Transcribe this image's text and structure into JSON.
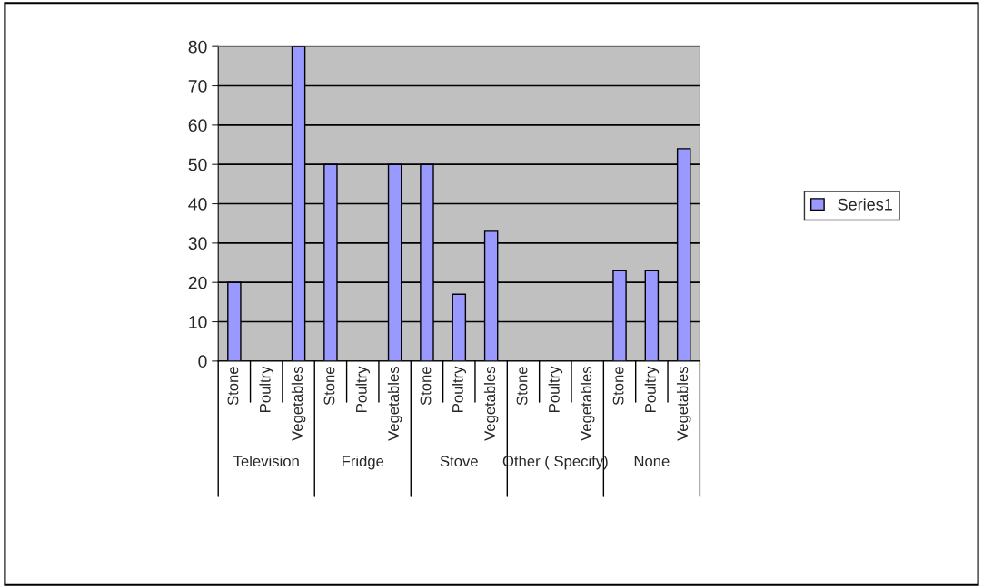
{
  "chart_data": {
    "type": "bar",
    "categories": [
      "Stone",
      "Poultry",
      "Vegetables",
      "Stone",
      "Poultry",
      "Vegetables",
      "Stone",
      "Poultry",
      "Vegetables",
      "Stone",
      "Poultry",
      "Vegetables",
      "Stone",
      "Poultry",
      "Vegetables"
    ],
    "series": [
      {
        "name": "Series1",
        "color": "#9999ff",
        "values": [
          20,
          0,
          80,
          50,
          0,
          50,
          50,
          17,
          33,
          0,
          0,
          0,
          23,
          23,
          54
        ]
      }
    ],
    "annotations": [
      "Television",
      "Fridge",
      "Stove",
      "Other ( Specify)",
      "None"
    ],
    "ylim": [
      0,
      80
    ],
    "yticks": [
      0,
      10,
      20,
      30,
      40,
      50,
      60,
      70,
      80
    ],
    "grid": "y",
    "legend": "right"
  }
}
